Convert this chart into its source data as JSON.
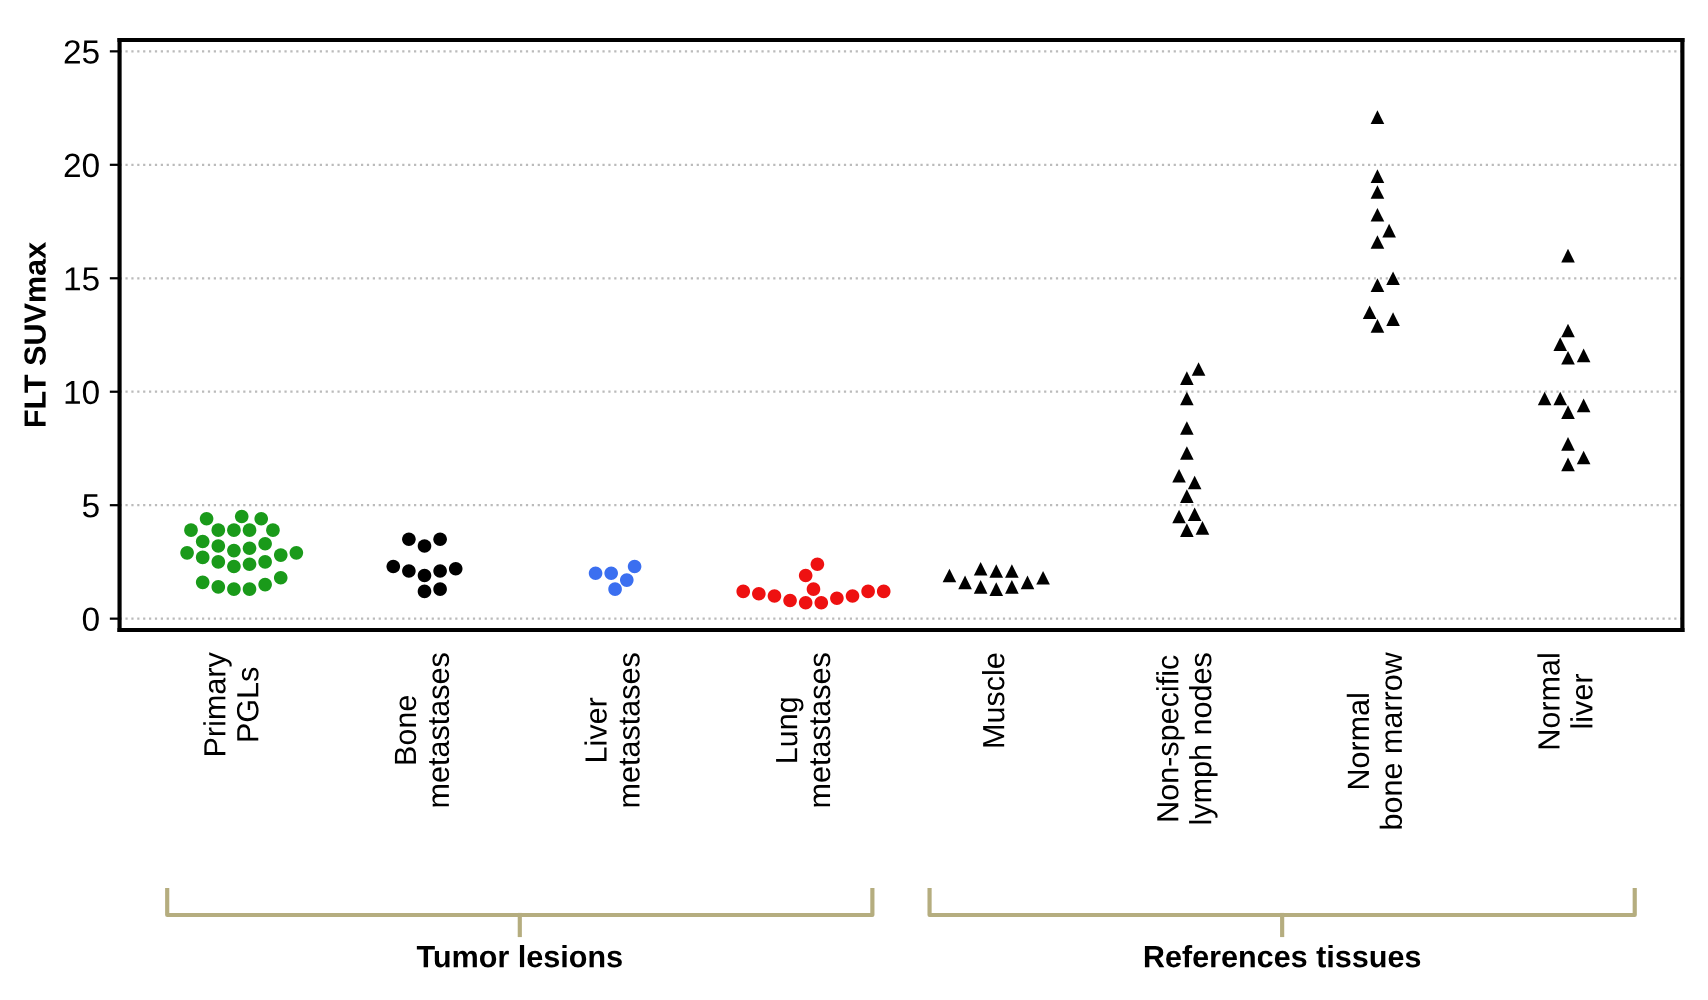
{
  "chart_data": {
    "type": "scatter",
    "ylabel": "FLT SUVmax",
    "categories": [
      "Primary\nPGLs",
      "Bone\nmetastases",
      "Liver\nmetastases",
      "Lung\nmetastases",
      "Muscle",
      "Non-specific\nlymph nodes",
      "Normal\nbone marrow",
      "Normal\nliver"
    ],
    "ylim": [
      -0.5,
      25.5
    ],
    "yticks": [
      0,
      5,
      10,
      15,
      20,
      25
    ],
    "grid": "y",
    "legend": false,
    "series": [
      {
        "color": "#1a9a1a",
        "marker": "circle",
        "x": [
          "Primary\nPGLs",
          "Primary\nPGLs",
          "Primary\nPGLs",
          "Primary\nPGLs",
          "Primary\nPGLs",
          "Primary\nPGLs",
          "Primary\nPGLs",
          "Primary\nPGLs",
          "Primary\nPGLs",
          "Primary\nPGLs",
          "Primary\nPGLs",
          "Primary\nPGLs",
          "Primary\nPGLs",
          "Primary\nPGLs",
          "Primary\nPGLs",
          "Primary\nPGLs",
          "Primary\nPGLs",
          "Primary\nPGLs",
          "Primary\nPGLs",
          "Primary\nPGLs",
          "Primary\nPGLs",
          "Primary\nPGLs",
          "Primary\nPGLs",
          "Primary\nPGLs",
          "Primary\nPGLs",
          "Primary\nPGLs",
          "Primary\nPGLs"
        ],
        "values": [
          4.5,
          4.4,
          4.4,
          3.4,
          3.9,
          3.9,
          3.9,
          3.9,
          3.9,
          3.2,
          3.0,
          2.9,
          2.8,
          2.7,
          2.5,
          2.4,
          2.3,
          3.3,
          3.1,
          2.9,
          2.5,
          1.8,
          1.6,
          1.5,
          1.4,
          1.3,
          1.3
        ]
      },
      {
        "color": "#000000",
        "marker": "circle",
        "x": [
          "Bone\nmetastases",
          "Bone\nmetastases",
          "Bone\nmetastases",
          "Bone\nmetastases",
          "Bone\nmetastases",
          "Bone\nmetastases",
          "Bone\nmetastases",
          "Bone\nmetastases",
          "Bone\nmetastases",
          "Bone\nmetastases"
        ],
        "values": [
          3.5,
          3.5,
          3.2,
          2.3,
          2.2,
          2.1,
          1.9,
          2.1,
          1.3,
          1.2
        ]
      },
      {
        "color": "#3b6ff0",
        "marker": "circle",
        "x": [
          "Liver\nmetastases",
          "Liver\nmetastases",
          "Liver\nmetastases",
          "Liver\nmetastases",
          "Liver\nmetastases"
        ],
        "values": [
          2.3,
          2.0,
          2.0,
          1.7,
          1.3
        ]
      },
      {
        "color": "#ee1111",
        "marker": "circle",
        "x": [
          "Lung\nmetastases",
          "Lung\nmetastases",
          "Lung\nmetastases",
          "Lung\nmetastases",
          "Lung\nmetastases",
          "Lung\nmetastases",
          "Lung\nmetastases",
          "Lung\nmetastases",
          "Lung\nmetastases",
          "Lung\nmetastases",
          "Lung\nmetastases",
          "Lung\nmetastases",
          "Lung\nmetastases"
        ],
        "values": [
          2.4,
          1.9,
          1.2,
          1.2,
          1.3,
          1.0,
          1.1,
          0.9,
          0.8,
          0.7,
          0.7,
          1.2,
          1.0
        ]
      },
      {
        "color": "#000000",
        "marker": "triangle",
        "x": [
          "Muscle",
          "Muscle",
          "Muscle",
          "Muscle",
          "Muscle",
          "Muscle",
          "Muscle",
          "Muscle",
          "Muscle",
          "Muscle"
        ],
        "values": [
          2.2,
          2.1,
          1.9,
          1.8,
          1.6,
          1.3,
          1.4,
          1.4,
          2.1,
          1.6
        ]
      },
      {
        "color": "#000000",
        "marker": "triangle",
        "x": [
          "Non-specific\nlymph nodes",
          "Non-specific\nlymph nodes",
          "Non-specific\nlymph nodes",
          "Non-specific\nlymph nodes",
          "Non-specific\nlymph nodes",
          "Non-specific\nlymph nodes",
          "Non-specific\nlymph nodes",
          "Non-specific\nlymph nodes",
          "Non-specific\nlymph nodes",
          "Non-specific\nlymph nodes",
          "Non-specific\nlymph nodes",
          "Non-specific\nlymph nodes"
        ],
        "values": [
          11.0,
          10.6,
          9.7,
          8.4,
          7.3,
          6.3,
          6.0,
          5.4,
          4.6,
          4.5,
          4.0,
          3.9
        ]
      },
      {
        "color": "#000000",
        "marker": "triangle",
        "x": [
          "Normal\nbone marrow",
          "Normal\nbone marrow",
          "Normal\nbone marrow",
          "Normal\nbone marrow",
          "Normal\nbone marrow",
          "Normal\nbone marrow",
          "Normal\nbone marrow",
          "Normal\nbone marrow",
          "Normal\nbone marrow",
          "Normal\nbone marrow",
          "Normal\nbone marrow"
        ],
        "values": [
          22.1,
          19.5,
          18.8,
          17.8,
          17.1,
          16.6,
          15.0,
          14.7,
          13.5,
          13.2,
          12.9
        ]
      },
      {
        "color": "#000000",
        "marker": "triangle",
        "x": [
          "Normal\nliver",
          "Normal\nliver",
          "Normal\nliver",
          "Normal\nliver",
          "Normal\nliver",
          "Normal\nliver",
          "Normal\nliver",
          "Normal\nliver",
          "Normal\nliver",
          "Normal\nliver",
          "Normal\nliver",
          "Normal\nliver"
        ],
        "values": [
          16.0,
          12.7,
          11.6,
          11.5,
          12.1,
          9.7,
          9.7,
          9.4,
          9.1,
          7.1,
          7.7,
          6.8
        ]
      }
    ],
    "annotations": [
      "Tumor lesions",
      "References tissues"
    ]
  }
}
